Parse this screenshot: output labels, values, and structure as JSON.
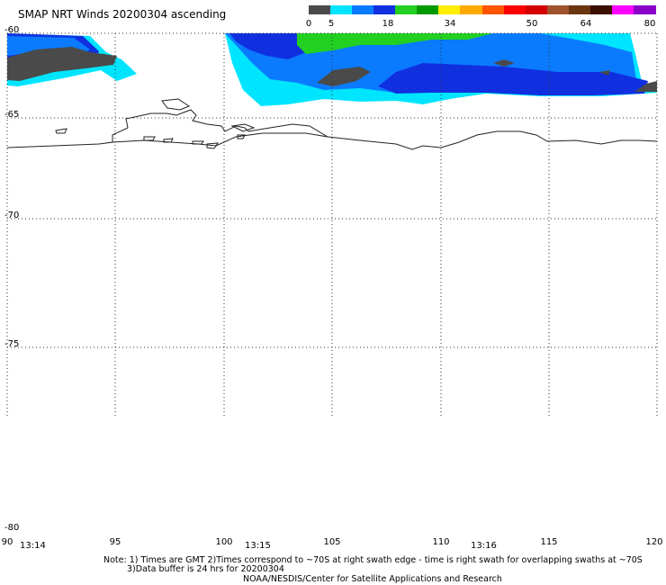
{
  "title": "SMAP NRT Winds 20200304 ascending",
  "colorbar": {
    "labels": [
      "0",
      "5",
      "18",
      "34",
      "50",
      "64",
      "80"
    ],
    "segments": [
      {
        "color": "#4a4a4a"
      },
      {
        "color": "#00e5ff"
      },
      {
        "color": "#0a7bff"
      },
      {
        "color": "#1030e0"
      },
      {
        "color": "#22d022"
      },
      {
        "color": "#009900"
      },
      {
        "color": "#ffee00"
      },
      {
        "color": "#ffaa00"
      },
      {
        "color": "#ff5500"
      },
      {
        "color": "#ff0000"
      },
      {
        "color": "#d20000"
      },
      {
        "color": "#a0522d"
      },
      {
        "color": "#6b3510"
      },
      {
        "color": "#3a0e00"
      },
      {
        "color": "#ff00ff"
      },
      {
        "color": "#8a00c8"
      }
    ]
  },
  "lat_labels": [
    "-60",
    "-65",
    "-70",
    "-75",
    "-80"
  ],
  "lon_labels": [
    "90",
    "95",
    "100",
    "105",
    "110",
    "115",
    "120"
  ],
  "time_labels": [
    "13:14",
    "13:15",
    "13:16"
  ],
  "notes": {
    "line1": "Note: 1) Times are GMT 2)Times correspond to ~70S at right swath edge - time is right swath for overlapping swaths at ~70S",
    "line2": "3)Data buffer is 24 hrs for 20200304",
    "line3": "NOAA/NESDIS/Center for Satellite Applications and Research"
  },
  "colors": {
    "coastline": "#222222",
    "grid": "#333333",
    "land_shadow": "#4a4a4a",
    "cyan": "#00e5ff",
    "blue": "#0a7bff",
    "deep_blue": "#1030e0",
    "green": "#22d022"
  }
}
